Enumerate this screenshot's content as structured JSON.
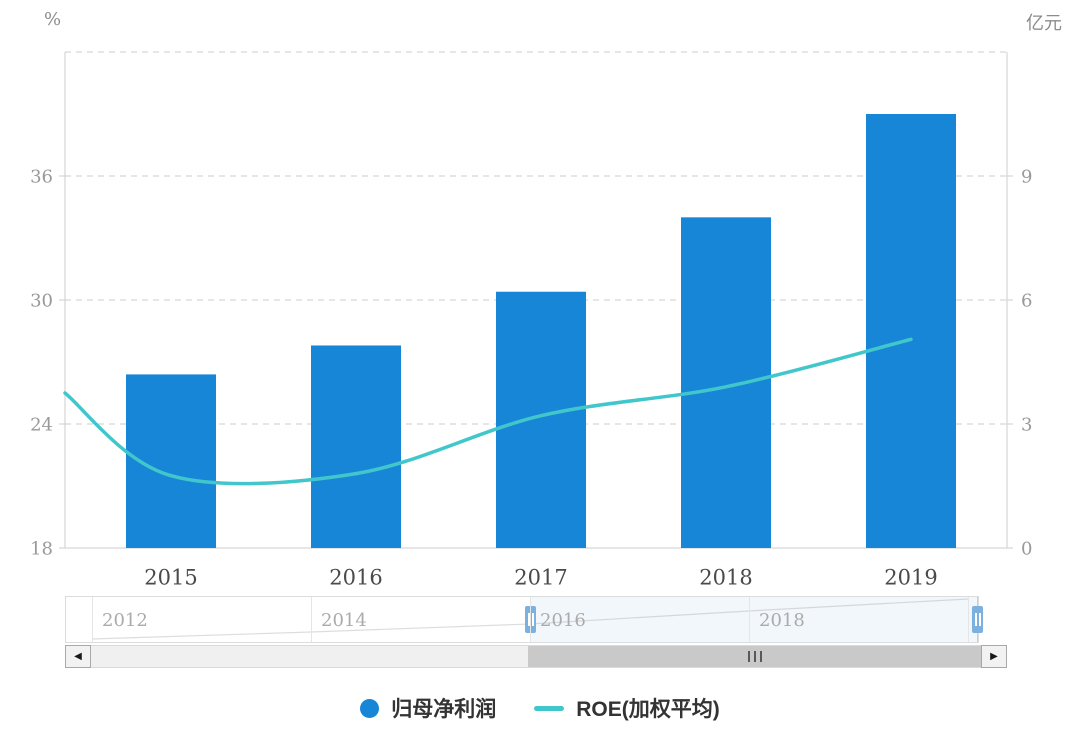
{
  "chart_data": {
    "type": "bar+line dual-axis",
    "categories": [
      "2015",
      "2016",
      "2017",
      "2018",
      "2019"
    ],
    "series": [
      {
        "name": "归母净利润",
        "type": "bar",
        "y_axis": "right",
        "unit": "亿元",
        "color": "#1886d6",
        "values": [
          4.2,
          4.9,
          6.2,
          8.0,
          10.5
        ]
      },
      {
        "name": "ROE(加权平均)",
        "type": "line",
        "y_axis": "left",
        "unit": "%",
        "color": "#41c7cb",
        "smooth": true,
        "values": [
          21.5,
          21.6,
          24.4,
          25.8,
          28.1
        ],
        "lead_in_value_at_left_edge": 25.5
      }
    ],
    "left_axis": {
      "name": "%",
      "min": 18,
      "max": 42,
      "ticks": [
        18,
        24,
        30,
        36
      ]
    },
    "right_axis": {
      "name": "亿元",
      "min": 0,
      "max": 12,
      "ticks": [
        0,
        3,
        6,
        9
      ]
    },
    "grid": {
      "horizontal_dashed": true,
      "axis_color": "#cccccc"
    },
    "legend_position": "bottom",
    "data_zoom": {
      "range_labels": [
        "2012",
        "2014",
        "2016",
        "2018"
      ],
      "selected_window": "from 2016 tick to right end"
    }
  },
  "ui_colors": {
    "tick_label": "#999999",
    "x_label": "#4a4a4a",
    "slider_label": "#ababab",
    "handle": "#7cb0de",
    "preview_line": "#dddddd"
  },
  "icons": {
    "scroll_left": "◀",
    "scroll_right": "▶"
  }
}
